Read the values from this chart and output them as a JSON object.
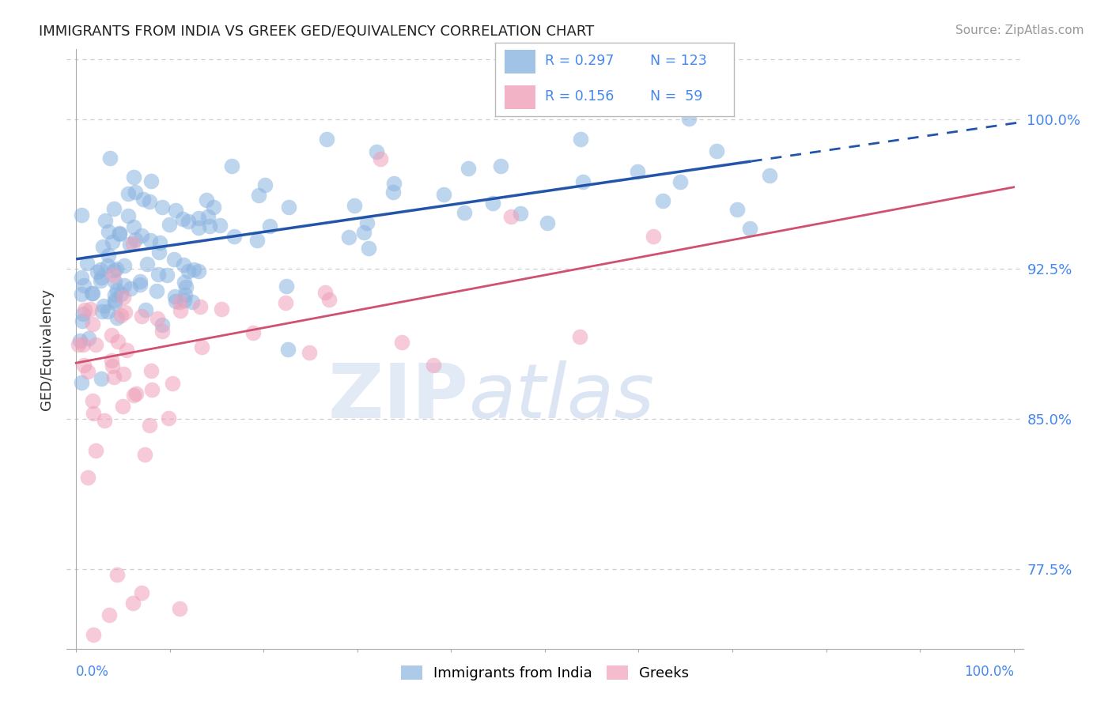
{
  "title": "IMMIGRANTS FROM INDIA VS GREEK GED/EQUIVALENCY CORRELATION CHART",
  "source": "Source: ZipAtlas.com",
  "ylabel": "GED/Equivalency",
  "color_india": "#8ab4e0",
  "color_greek": "#f0a0b8",
  "color_india_line": "#2255aa",
  "color_greek_line": "#d05070",
  "background_color": "#ffffff",
  "india_intercept": 0.93,
  "india_slope": 0.068,
  "greek_intercept": 0.878,
  "greek_slope": 0.088,
  "yticks": [
    0.775,
    0.85,
    0.925,
    1.0
  ],
  "ytick_labels": [
    "77.5%",
    "85.0%",
    "92.5%",
    "100.0%"
  ],
  "ylim_low": 0.735,
  "ylim_high": 1.035,
  "xlim_low": -0.01,
  "xlim_high": 1.01
}
